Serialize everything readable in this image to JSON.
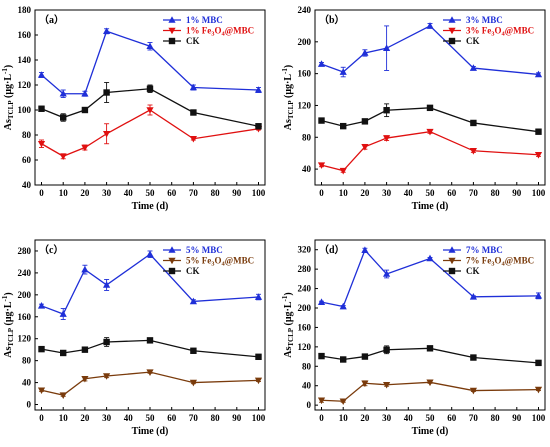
{
  "chart_data": [
    {
      "type": "line",
      "panel_label": "（a）",
      "x": [
        0,
        10,
        20,
        30,
        50,
        70,
        100
      ],
      "xlim": [
        -3,
        103
      ],
      "xticks": [
        0,
        10,
        20,
        30,
        40,
        50,
        60,
        70,
        80,
        90,
        100
      ],
      "ylim": [
        40,
        180
      ],
      "yticks": [
        40,
        60,
        80,
        100,
        120,
        140,
        160,
        180
      ],
      "xlabel": "Time (d)",
      "ylabel_main": "As",
      "ylabel_sub": "TCLP",
      "ylabel_unit": " (μg·L",
      "ylabel_sup": "-1",
      "ylabel_close": ")",
      "legend_position": "top-right",
      "series": [
        {
          "name_pre": "1% MBC",
          "name_sub": "",
          "name_post": "",
          "color": "#1f2fd8",
          "marker": "triangle-up",
          "values": [
            128,
            113,
            113,
            163,
            151,
            118,
            116
          ],
          "errors": [
            2,
            3,
            2,
            2,
            3,
            2,
            2
          ]
        },
        {
          "name_pre": "1% Fe",
          "name_sub": "3",
          "name_mid": "O",
          "name_sub2": "4",
          "name_post": "@MBC",
          "color": "#e01010",
          "marker": "triangle-down",
          "values": [
            73,
            63,
            70,
            81,
            100,
            77,
            85
          ],
          "errors": [
            3,
            2,
            2,
            8,
            4,
            1,
            1
          ]
        },
        {
          "name_pre": "CK",
          "name_sub": "",
          "name_post": "",
          "color": "#111111",
          "marker": "square",
          "values": [
            101,
            94,
            100,
            114,
            117,
            98,
            87
          ],
          "errors": [
            2,
            3,
            2,
            8,
            3,
            1,
            1
          ]
        }
      ]
    },
    {
      "type": "line",
      "panel_label": "（b）",
      "x": [
        0,
        10,
        20,
        30,
        50,
        70,
        100
      ],
      "xlim": [
        -3,
        103
      ],
      "xticks": [
        0,
        10,
        20,
        30,
        40,
        50,
        60,
        70,
        80,
        90,
        100
      ],
      "ylim": [
        20,
        240
      ],
      "yticks": [
        40,
        80,
        120,
        160,
        200,
        240
      ],
      "xlabel": "Time (d)",
      "ylabel_main": "As",
      "ylabel_sub": "TCLP",
      "ylabel_unit": " (μg·L",
      "ylabel_sup": "-1",
      "ylabel_close": ")",
      "legend_position": "top-right",
      "series": [
        {
          "name_pre": "3% MBC",
          "name_sub": "",
          "name_post": "",
          "color": "#1f2fd8",
          "marker": "triangle-up",
          "values": [
            172,
            162,
            186,
            192,
            220,
            167,
            159
          ],
          "errors": [
            2,
            6,
            4,
            28,
            3,
            2,
            2
          ]
        },
        {
          "name_pre": "3% Fe",
          "name_sub": "3",
          "name_mid": "O",
          "name_sub2": "4",
          "name_post": "@MBC",
          "color": "#e01010",
          "marker": "triangle-down",
          "values": [
            45,
            38,
            68,
            79,
            87,
            63,
            58
          ],
          "errors": [
            2,
            2,
            3,
            3,
            2,
            2,
            2
          ]
        },
        {
          "name_pre": "CK",
          "name_sub": "",
          "name_post": "",
          "color": "#111111",
          "marker": "square",
          "values": [
            101,
            94,
            100,
            114,
            117,
            98,
            87
          ],
          "errors": [
            2,
            3,
            2,
            8,
            3,
            1,
            1
          ]
        }
      ]
    },
    {
      "type": "line",
      "panel_label": "（c）",
      "x": [
        0,
        10,
        20,
        30,
        50,
        70,
        100
      ],
      "xlim": [
        -3,
        103
      ],
      "xticks": [
        0,
        10,
        20,
        30,
        40,
        50,
        60,
        70,
        80,
        90,
        100
      ],
      "ylim": [
        -10,
        300
      ],
      "yticks": [
        0,
        40,
        80,
        120,
        160,
        200,
        240,
        280
      ],
      "xlabel": "Time (d)",
      "ylabel_main": "As",
      "ylabel_sub": "TCLP",
      "ylabel_unit": " (μg·L",
      "ylabel_sup": "-1",
      "ylabel_close": ")",
      "legend_position": "top-right",
      "series": [
        {
          "name_pre": "5% MBC",
          "name_sub": "",
          "name_post": "",
          "color": "#1f2fd8",
          "marker": "triangle-up",
          "values": [
            180,
            165,
            246,
            218,
            274,
            188,
            196
          ],
          "errors": [
            3,
            10,
            8,
            10,
            6,
            3,
            5
          ]
        },
        {
          "name_pre": "5% Fe",
          "name_sub": "3",
          "name_mid": "O",
          "name_sub2": "4",
          "name_post": "@MBC",
          "color": "#7a3b0c",
          "marker": "triangle-down",
          "values": [
            26,
            17,
            47,
            52,
            59,
            40,
            44
          ],
          "errors": [
            2,
            2,
            4,
            3,
            2,
            2,
            2
          ]
        },
        {
          "name_pre": "CK",
          "name_sub": "",
          "name_post": "",
          "color": "#111111",
          "marker": "square",
          "values": [
            101,
            94,
            100,
            114,
            117,
            98,
            87
          ],
          "errors": [
            2,
            3,
            2,
            8,
            3,
            1,
            1
          ]
        }
      ]
    },
    {
      "type": "line",
      "panel_label": "（d）",
      "x": [
        0,
        10,
        20,
        30,
        50,
        70,
        100
      ],
      "xlim": [
        -3,
        103
      ],
      "xticks": [
        0,
        10,
        20,
        30,
        40,
        50,
        60,
        70,
        80,
        90,
        100
      ],
      "ylim": [
        -10,
        340
      ],
      "yticks": [
        0,
        40,
        80,
        120,
        160,
        200,
        240,
        280,
        320
      ],
      "xlabel": "Time (d)",
      "ylabel_main": "As",
      "ylabel_sub": "TCLP",
      "ylabel_unit": " (μg·L",
      "ylabel_sup": "-1",
      "ylabel_close": ")",
      "legend_position": "top-right",
      "series": [
        {
          "name_pre": "7% MBC",
          "name_sub": "",
          "name_post": "",
          "color": "#1f2fd8",
          "marker": "triangle-up",
          "values": [
            212,
            203,
            319,
            270,
            302,
            223,
            225
          ],
          "errors": [
            2,
            2,
            4,
            8,
            2,
            2,
            6
          ]
        },
        {
          "name_pre": "7% Fe",
          "name_sub": "3",
          "name_mid": "O",
          "name_sub2": "4",
          "name_post": "@MBC",
          "color": "#7a3b0c",
          "marker": "triangle-down",
          "values": [
            10,
            8,
            45,
            42,
            47,
            30,
            32
          ],
          "errors": [
            4,
            2,
            5,
            3,
            2,
            2,
            2
          ]
        },
        {
          "name_pre": "CK",
          "name_sub": "",
          "name_post": "",
          "color": "#111111",
          "marker": "square",
          "values": [
            101,
            94,
            100,
            114,
            117,
            98,
            87
          ],
          "errors": [
            2,
            3,
            2,
            8,
            3,
            1,
            1
          ]
        }
      ]
    }
  ]
}
